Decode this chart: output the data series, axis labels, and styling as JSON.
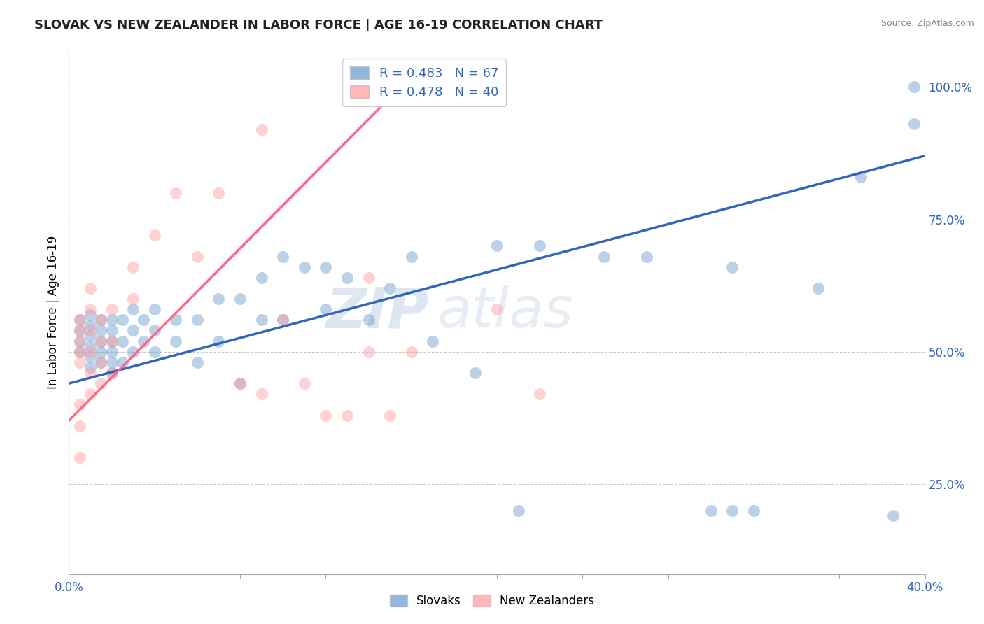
{
  "title": "SLOVAK VS NEW ZEALANDER IN LABOR FORCE | AGE 16-19 CORRELATION CHART",
  "source_text": "Source: ZipAtlas.com",
  "ylabel": "In Labor Force | Age 16-19",
  "xlim": [
    0.0,
    0.4
  ],
  "ylim": [
    0.08,
    1.07
  ],
  "xticks": [
    0.0,
    0.04,
    0.08,
    0.12,
    0.16,
    0.2,
    0.24,
    0.28,
    0.32,
    0.36,
    0.4
  ],
  "yticks": [
    0.25,
    0.5,
    0.75,
    1.0
  ],
  "ytick_labels": [
    "25.0%",
    "50.0%",
    "75.0%",
    "100.0%"
  ],
  "xtick_labels": [
    "0.0%",
    "",
    "",
    "",
    "",
    "",
    "",
    "",
    "",
    "",
    "40.0%"
  ],
  "blue_R": 0.483,
  "blue_N": 67,
  "pink_R": 0.478,
  "pink_N": 40,
  "legend_label_blue": "Slovaks",
  "legend_label_pink": "New Zealanders",
  "blue_color": "#6699CC",
  "pink_color": "#FF9999",
  "blue_line_color": "#3366BB",
  "pink_line_color": "#FF6688",
  "watermark_zip": "ZIP",
  "watermark_atlas": "atlas",
  "blue_scatter_x": [
    0.005,
    0.005,
    0.005,
    0.005,
    0.01,
    0.01,
    0.01,
    0.01,
    0.01,
    0.01,
    0.015,
    0.015,
    0.015,
    0.015,
    0.015,
    0.02,
    0.02,
    0.02,
    0.02,
    0.02,
    0.02,
    0.025,
    0.025,
    0.025,
    0.03,
    0.03,
    0.03,
    0.035,
    0.035,
    0.04,
    0.04,
    0.04,
    0.05,
    0.05,
    0.06,
    0.06,
    0.07,
    0.07,
    0.08,
    0.08,
    0.09,
    0.09,
    0.1,
    0.1,
    0.11,
    0.12,
    0.12,
    0.13,
    0.14,
    0.15,
    0.16,
    0.17,
    0.19,
    0.2,
    0.22,
    0.25,
    0.27,
    0.3,
    0.32,
    0.35,
    0.37,
    0.385,
    0.395,
    0.395,
    0.31,
    0.31,
    0.21
  ],
  "blue_scatter_y": [
    0.5,
    0.52,
    0.54,
    0.56,
    0.47,
    0.49,
    0.51,
    0.53,
    0.55,
    0.57,
    0.48,
    0.5,
    0.52,
    0.54,
    0.56,
    0.46,
    0.48,
    0.5,
    0.52,
    0.54,
    0.56,
    0.48,
    0.52,
    0.56,
    0.5,
    0.54,
    0.58,
    0.52,
    0.56,
    0.5,
    0.54,
    0.58,
    0.52,
    0.56,
    0.48,
    0.56,
    0.52,
    0.6,
    0.44,
    0.6,
    0.56,
    0.64,
    0.56,
    0.68,
    0.66,
    0.58,
    0.66,
    0.64,
    0.56,
    0.62,
    0.68,
    0.52,
    0.46,
    0.7,
    0.7,
    0.68,
    0.68,
    0.2,
    0.2,
    0.62,
    0.83,
    0.19,
    1.0,
    0.93,
    0.2,
    0.66,
    0.2
  ],
  "pink_scatter_x": [
    0.005,
    0.005,
    0.005,
    0.005,
    0.005,
    0.01,
    0.01,
    0.01,
    0.01,
    0.01,
    0.015,
    0.015,
    0.015,
    0.015,
    0.02,
    0.02,
    0.02,
    0.03,
    0.03,
    0.04,
    0.05,
    0.06,
    0.07,
    0.08,
    0.09,
    0.1,
    0.11,
    0.12,
    0.13,
    0.14,
    0.15,
    0.16,
    0.09,
    0.005,
    0.005,
    0.005,
    0.01,
    0.14,
    0.22,
    0.2
  ],
  "pink_scatter_y": [
    0.48,
    0.5,
    0.52,
    0.54,
    0.56,
    0.46,
    0.5,
    0.54,
    0.58,
    0.62,
    0.44,
    0.48,
    0.52,
    0.56,
    0.46,
    0.52,
    0.58,
    0.6,
    0.66,
    0.72,
    0.8,
    0.68,
    0.8,
    0.44,
    0.92,
    0.56,
    0.44,
    0.38,
    0.38,
    0.5,
    0.38,
    0.5,
    0.42,
    0.3,
    0.36,
    0.4,
    0.42,
    0.64,
    0.42,
    0.58
  ],
  "blue_line_x": [
    0.0,
    0.4
  ],
  "blue_line_y": [
    0.44,
    0.87
  ],
  "pink_line_x": [
    0.0,
    0.155
  ],
  "pink_line_y": [
    0.37,
    1.0
  ]
}
